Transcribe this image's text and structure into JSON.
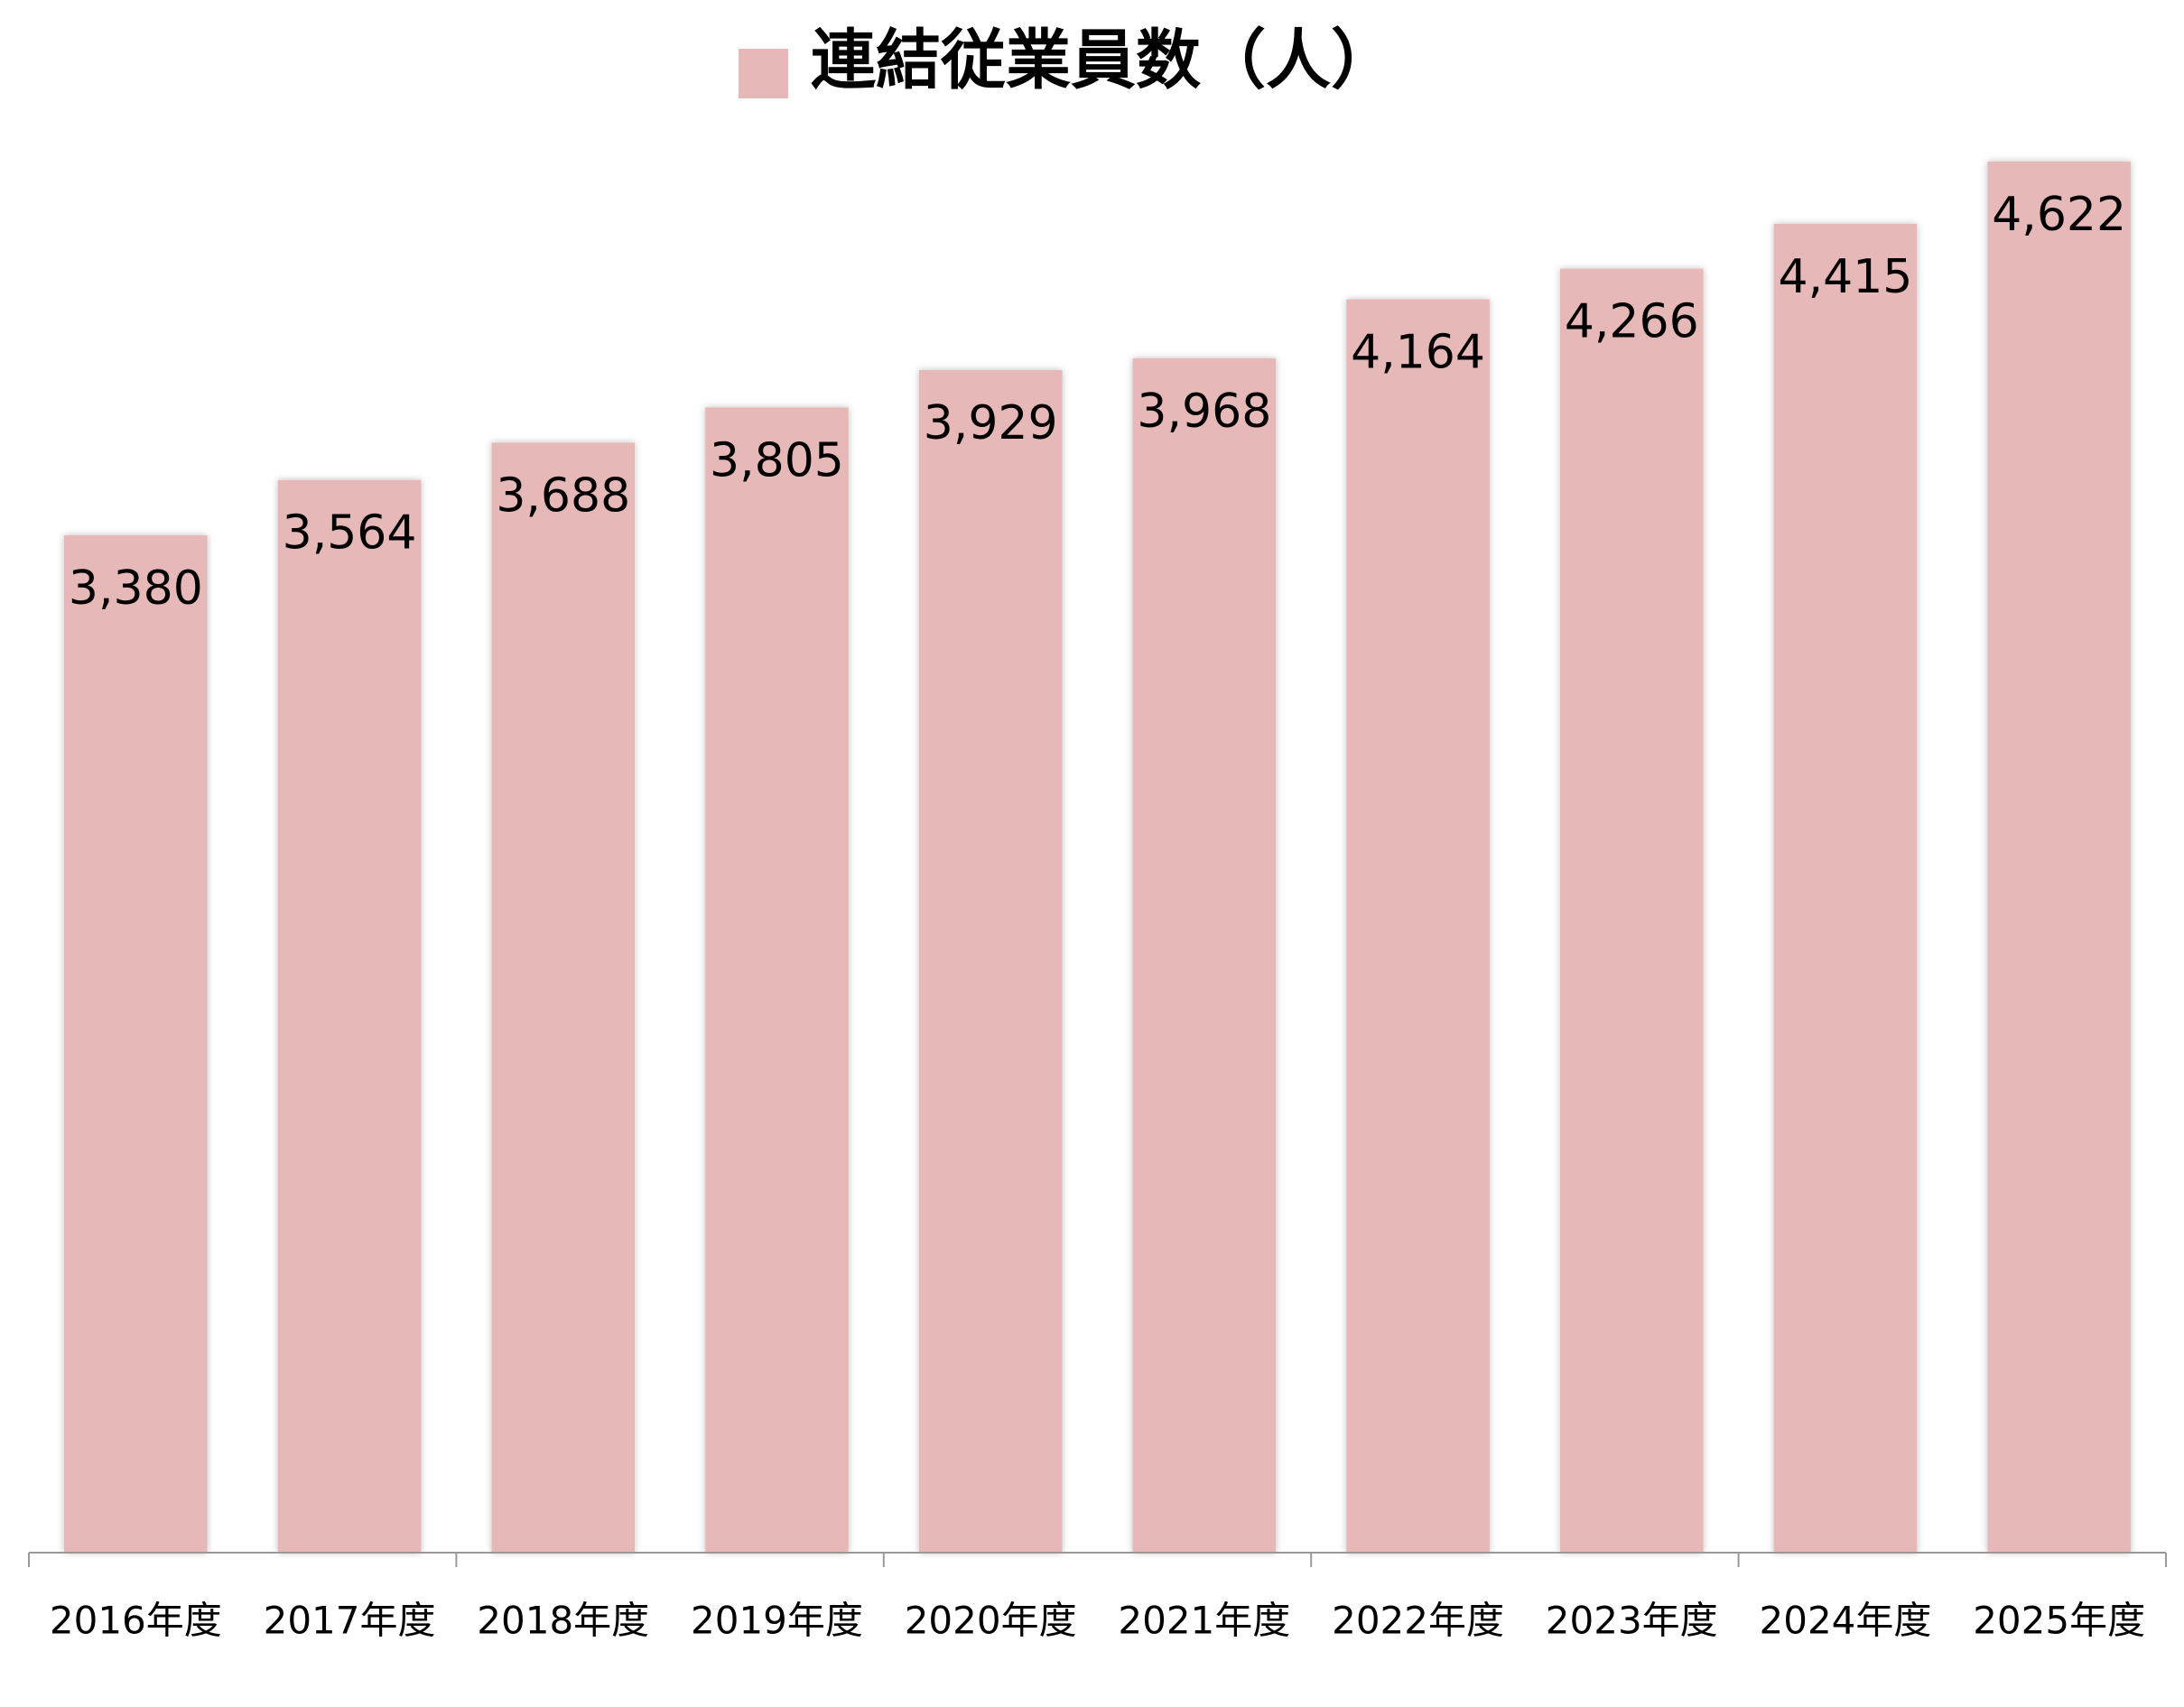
{
  "chart_data": {
    "type": "bar",
    "categories": [
      "2016年度",
      "2017年度",
      "2018年度",
      "2019年度",
      "2020年度",
      "2021年度",
      "2022年度",
      "2023年度",
      "2024年度",
      "2025年度"
    ],
    "series": [
      {
        "name": "連結従業員数（人）",
        "color": "#e6b8b7",
        "values": [
          3380,
          3564,
          3688,
          3805,
          3929,
          3968,
          4164,
          4266,
          4415,
          4622
        ],
        "value_labels": [
          "3,380",
          "3,564",
          "3,688",
          "3,805",
          "3,929",
          "3,968",
          "4,164",
          "4,266",
          "4,415",
          "4,622"
        ]
      }
    ],
    "legend": "top"
  }
}
